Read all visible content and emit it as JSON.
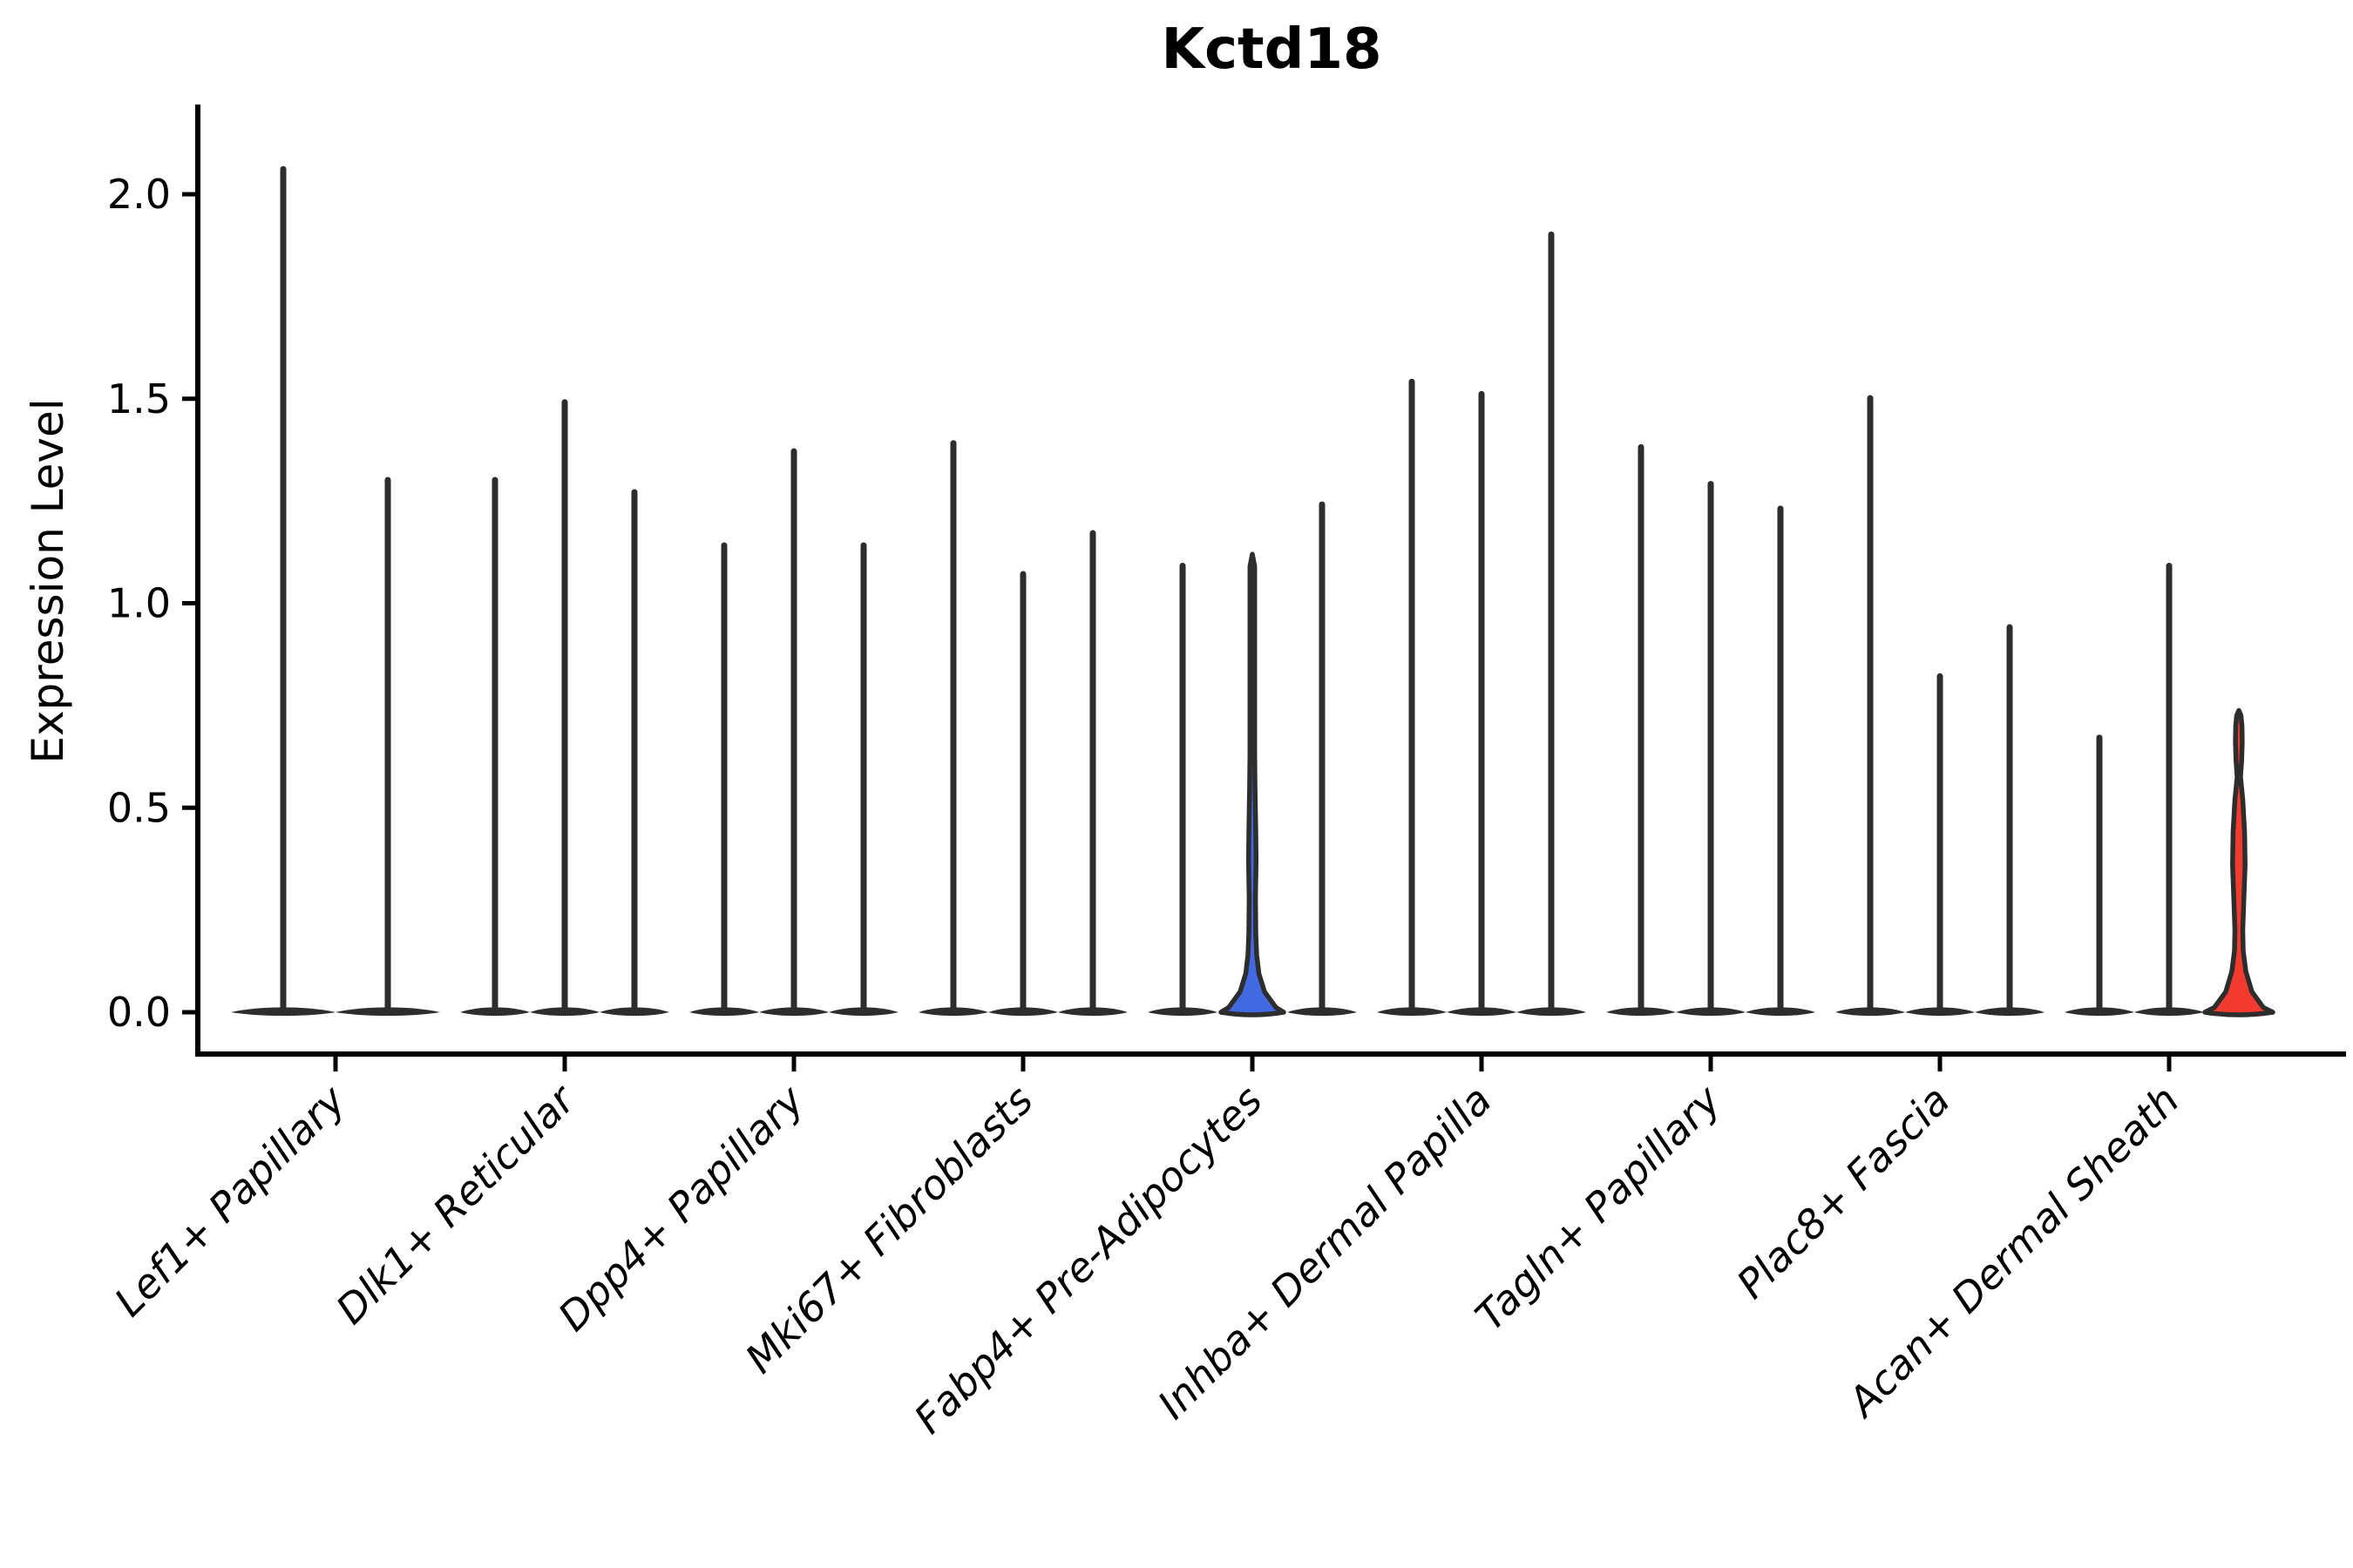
{
  "title": "Kctd18",
  "axis": {
    "ylabel": "Expression Level",
    "ytick_labels": [
      "0.0",
      "0.5",
      "1.0",
      "1.5",
      "2.0"
    ]
  },
  "colors": {
    "violin_outline": "#2d2d2d",
    "highlight_blue": "#4169e1",
    "highlight_red": "#f23a2e",
    "axis": "#000000"
  },
  "chart_data": {
    "type": "violin",
    "title": "Kctd18",
    "xlabel": "",
    "ylabel": "Expression Level",
    "ylim": [
      0,
      2.21
    ],
    "yticks": [
      0.0,
      0.5,
      1.0,
      1.5,
      2.0
    ],
    "ytick_labels": [
      "0.0",
      "0.5",
      "1.0",
      "1.5",
      "2.0"
    ],
    "grid": false,
    "legend": "none",
    "description": "Grouped violin plot; most violins are collapsed near 0 (wide flat base at y=0 with a thin density spike up to the max expression value). One violin is filled blue, one filled red.",
    "categories": [
      "Lef1+ Papillary",
      "Dlk1+ Reticular",
      "Dpp4+ Papillary",
      "Mki67+ Fibroblasts",
      "Fabp4+ Pre-Adipocytes",
      "Inhba+ Dermal Papilla",
      "Tagln+ Papillary",
      "Plac8+ Fascia",
      "Acan+ Dermal Sheath"
    ],
    "groups": [
      {
        "label": "Lef1+ Papillary",
        "violins": [
          {
            "max": 2.07
          },
          {
            "max": 1.31
          }
        ]
      },
      {
        "label": "Dlk1+ Reticular",
        "violins": [
          {
            "max": 1.31
          },
          {
            "max": 1.5
          },
          {
            "max": 1.28
          }
        ]
      },
      {
        "label": "Dpp4+ Papillary",
        "violins": [
          {
            "max": 1.15
          },
          {
            "max": 1.38
          },
          {
            "max": 1.15
          }
        ]
      },
      {
        "label": "Mki67+ Fibroblasts",
        "violins": [
          {
            "max": 1.4
          },
          {
            "max": 1.08
          },
          {
            "max": 1.18
          }
        ]
      },
      {
        "label": "Fabp4+ Pre-Adipocytes",
        "violins": [
          {
            "max": 1.1
          },
          {
            "max": 1.12,
            "fill": "blue"
          },
          {
            "max": 1.25
          }
        ]
      },
      {
        "label": "Inhba+ Dermal Papilla",
        "violins": [
          {
            "max": 1.55
          },
          {
            "max": 1.52
          },
          {
            "max": 1.91
          }
        ]
      },
      {
        "label": "Tagln+ Papillary",
        "violins": [
          {
            "max": 1.39
          },
          {
            "max": 1.3
          },
          {
            "max": 1.24
          }
        ]
      },
      {
        "label": "Plac8+ Fascia",
        "violins": [
          {
            "max": 1.51
          },
          {
            "max": 0.83
          },
          {
            "max": 0.95
          }
        ]
      },
      {
        "label": "Acan+ Dermal Sheath",
        "violins": [
          {
            "max": 0.68
          },
          {
            "max": 1.1
          },
          {
            "max": 0.73,
            "fill": "red"
          }
        ]
      }
    ],
    "highlighted": {
      "blue_violin": {
        "group": "Fabp4+ Pre-Adipocytes",
        "position": 2,
        "max": 1.12
      },
      "red_violin": {
        "group": "Acan+ Dermal Sheath",
        "position": 3,
        "max": 0.73
      }
    }
  }
}
